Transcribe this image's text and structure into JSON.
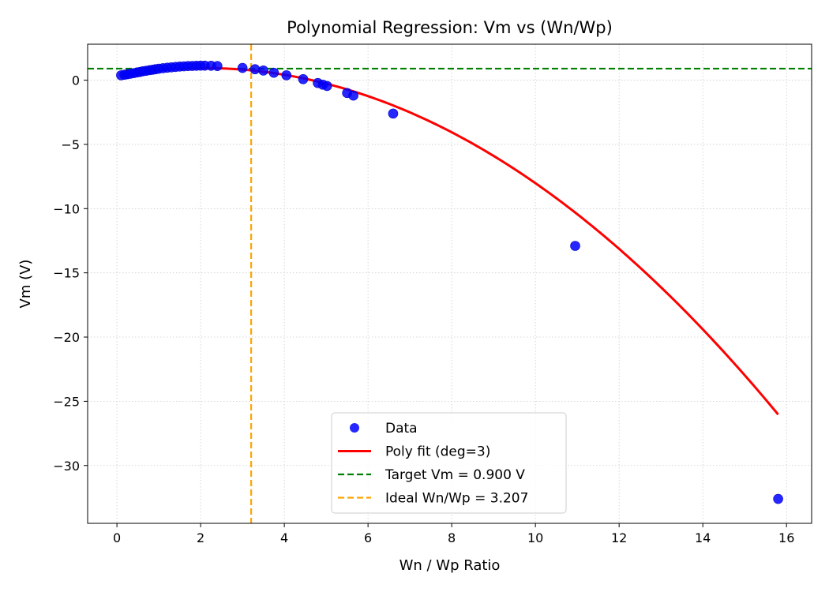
{
  "chart_data": {
    "type": "scatter",
    "title": "Polynomial Regression: Vm vs (Wn/Wp)",
    "xlabel": "Wn / Wp Ratio",
    "ylabel": "Vm (V)",
    "xlim": [
      -0.7,
      16.6
    ],
    "ylim": [
      -34.5,
      2.8
    ],
    "xticks": [
      0,
      2,
      4,
      6,
      8,
      10,
      12,
      14,
      16
    ],
    "yticks": [
      0,
      -5,
      -10,
      -15,
      -20,
      -25,
      -30
    ],
    "xtick_labels": [
      "0",
      "2",
      "4",
      "6",
      "8",
      "10",
      "12",
      "14",
      "16"
    ],
    "ytick_labels": [
      "0",
      "−5",
      "−10",
      "−15",
      "−20",
      "−25",
      "−30"
    ],
    "grid": true,
    "legend_position": "lower-center",
    "colors": {
      "data": "#0000ff",
      "fit": "#ff0000",
      "target": "#008000",
      "ideal": "#ffa500"
    },
    "series": [
      {
        "name": "Data",
        "kind": "scatter",
        "points": [
          [
            0.1,
            0.38
          ],
          [
            0.18,
            0.42
          ],
          [
            0.25,
            0.46
          ],
          [
            0.32,
            0.5
          ],
          [
            0.4,
            0.55
          ],
          [
            0.48,
            0.6
          ],
          [
            0.55,
            0.64
          ],
          [
            0.62,
            0.69
          ],
          [
            0.7,
            0.73
          ],
          [
            0.78,
            0.78
          ],
          [
            0.85,
            0.81
          ],
          [
            0.92,
            0.85
          ],
          [
            1.0,
            0.89
          ],
          [
            1.1,
            0.93
          ],
          [
            1.2,
            0.97
          ],
          [
            1.3,
            1.0
          ],
          [
            1.4,
            1.03
          ],
          [
            1.5,
            1.06
          ],
          [
            1.6,
            1.08
          ],
          [
            1.7,
            1.1
          ],
          [
            1.8,
            1.11
          ],
          [
            1.9,
            1.12
          ],
          [
            2.0,
            1.13
          ],
          [
            2.1,
            1.13
          ],
          [
            2.25,
            1.12
          ],
          [
            2.4,
            1.1
          ],
          [
            3.0,
            0.95
          ],
          [
            3.3,
            0.85
          ],
          [
            3.5,
            0.75
          ],
          [
            3.75,
            0.58
          ],
          [
            4.05,
            0.38
          ],
          [
            4.45,
            0.08
          ],
          [
            4.8,
            -0.22
          ],
          [
            4.92,
            -0.35
          ],
          [
            5.02,
            -0.45
          ],
          [
            5.5,
            -1.0
          ],
          [
            5.65,
            -1.2
          ],
          [
            6.6,
            -2.6
          ],
          [
            10.95,
            -12.9
          ],
          [
            15.8,
            -32.6
          ]
        ]
      },
      {
        "name": "Poly fit (deg=3)",
        "kind": "line",
        "coefficients": [
          0.31,
          0.6,
          -0.143,
          -3e-05
        ],
        "x_range": [
          0.1,
          15.8
        ]
      },
      {
        "name": "Target Vm = 0.900 V",
        "kind": "hline",
        "value": 0.9
      },
      {
        "name": "Ideal Wn/Wp = 3.207",
        "kind": "vline",
        "value": 3.207
      }
    ]
  }
}
